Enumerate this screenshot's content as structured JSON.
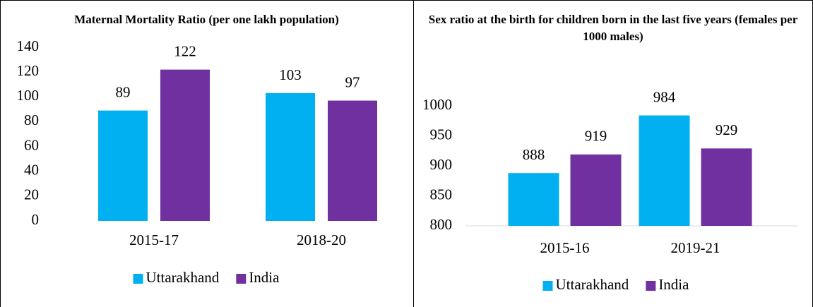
{
  "chart_data": [
    {
      "type": "bar",
      "title": "Maternal Mortality Ratio (per one lakh population)",
      "categories": [
        "2015-17",
        "2018-20"
      ],
      "series": [
        {
          "name": "Uttarakhand",
          "color": "#00b0f0",
          "values": [
            89,
            103
          ]
        },
        {
          "name": "India",
          "color": "#7030a0",
          "values": [
            122,
            97
          ]
        }
      ],
      "ylim": [
        0,
        140
      ],
      "yticks": [
        0,
        20,
        40,
        60,
        80,
        100,
        120,
        140
      ],
      "axis_line": false,
      "legend": "bottom"
    },
    {
      "type": "bar",
      "title": "Sex ratio at the birth for children born in the last five years (females per 1000 males)",
      "categories": [
        "2015-16",
        "2019-21"
      ],
      "series": [
        {
          "name": "Uttarakhand",
          "color": "#00b0f0",
          "values": [
            888,
            984
          ]
        },
        {
          "name": "India",
          "color": "#7030a0",
          "values": [
            919,
            929
          ]
        }
      ],
      "ylim": [
        800,
        1000
      ],
      "yticks": [
        800,
        850,
        900,
        950,
        1000
      ],
      "axis_line": true,
      "legend": "bottom"
    }
  ]
}
